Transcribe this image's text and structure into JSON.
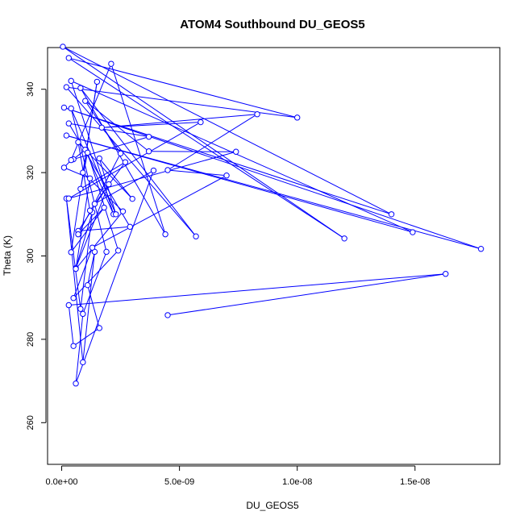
{
  "chart_data": {
    "type": "line",
    "title": "ATOM4 Southbound DU_GEOS5",
    "xlabel": "DU_GEOS5",
    "ylabel": "Theta (K)",
    "xlim": [
      -6e-10,
      1.86e-08
    ],
    "ylim": [
      250,
      350
    ],
    "x_ticks": [
      0,
      5e-09,
      1e-08,
      1.5e-08
    ],
    "x_tick_labels": [
      "0.0e+00",
      "5.0e-09",
      "1.0e-08",
      "1.5e-08"
    ],
    "y_ticks": [
      260,
      280,
      300,
      320,
      340
    ],
    "y_tick_labels": [
      "260",
      "280",
      "300",
      "320",
      "340"
    ],
    "grid": false,
    "line_color": "#0000ff",
    "marker": "open-circle",
    "series": [
      {
        "x": [
          4.5e-09,
          1.63e-08,
          3e-10,
          5e-10,
          1.6e-09,
          1.1e-09,
          1.4e-09,
          9e-10,
          2e-10,
          8e-10,
          1.3e-09,
          6e-10,
          2e-09,
          7e-10,
          2.9e-09,
          3e-10,
          3.7e-09,
          5e-10,
          1e-09,
          2.2e-09,
          4e-10,
          1.49e-08,
          2e-10,
          1.78e-08,
          1e-10,
          1.4e-08,
          5e-11,
          1.2e-08,
          3e-10,
          1e-08,
          2e-10,
          5.7e-09,
          8e-10,
          4.4e-09,
          2.1e-09,
          4e-10,
          1e-10,
          1.2e-09,
          6e-10,
          2.6e-09,
          9e-10,
          1.5e-09,
          4e-10,
          1.8e-09,
          7e-10,
          2.5e-09,
          1e-09,
          3.7e-09,
          7.4e-09,
          3e-10,
          5.9e-09,
          1.7e-09,
          8.3e-09,
          4.5e-09,
          7e-09,
          1.3e-09,
          5e-10,
          2.4e-09,
          1.1e-09,
          8e-10,
          2.7e-09,
          1.4e-09,
          3.9e-09,
          6e-10,
          9e-10,
          1.9e-09,
          4e-10,
          2.3e-09,
          1.6e-09,
          3e-09,
          7e-10,
          1.2e-09
        ],
        "y": [
          285.8,
          295.7,
          288.2,
          278.4,
          282.7,
          293.0,
          301.0,
          274.5,
          313.8,
          287.3,
          310.5,
          297.1,
          317.2,
          306.0,
          307.0,
          331.8,
          328.6,
          323.2,
          325.5,
          310.0,
          342.0,
          305.7,
          328.9,
          301.7,
          335.6,
          310.0,
          350.2,
          304.2,
          347.5,
          333.2,
          340.5,
          304.7,
          340.3,
          305.2,
          346.1,
          323.0,
          321.2,
          318.6,
          296.9,
          310.7,
          320.0,
          341.8,
          300.9,
          311.6,
          305.2,
          324.6,
          337.2,
          325.1,
          325.0,
          313.8,
          332.1,
          330.8,
          334.0,
          320.6,
          319.3,
          302.0,
          289.9,
          301.3,
          324.8,
          316.1,
          322.5,
          312.5,
          320.5,
          269.4,
          286.1,
          301.0,
          335.4,
          310.0,
          323.4,
          313.7,
          327.3,
          310.9
        ]
      }
    ]
  }
}
